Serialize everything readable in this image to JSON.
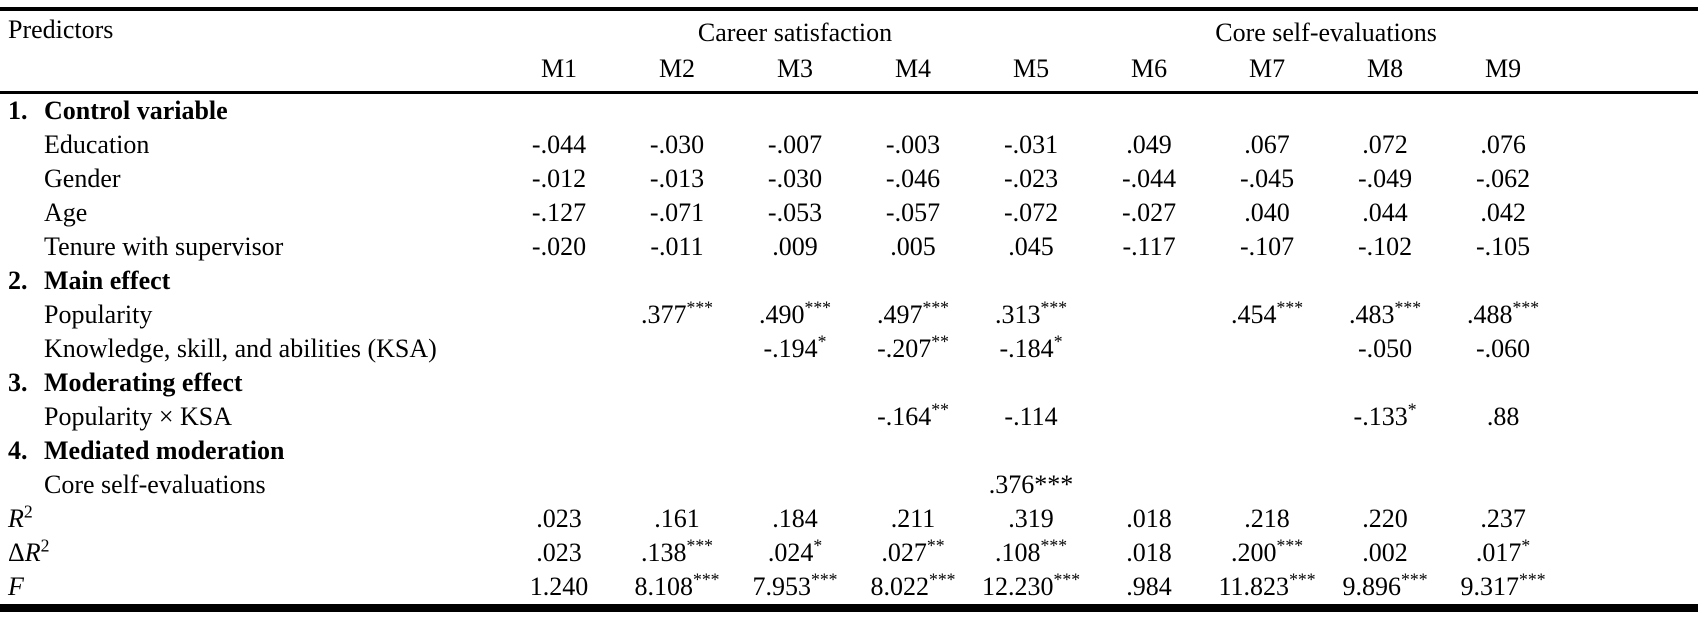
{
  "table": {
    "row_header": "Predictors",
    "groups": [
      {
        "label": "Career satisfaction",
        "span": 5
      },
      {
        "label": "Core self-evaluations",
        "span": 4
      }
    ],
    "model_columns": [
      "M1",
      "M2",
      "M3",
      "M4",
      "M5",
      "M6",
      "M7",
      "M8",
      "M9"
    ],
    "rows": [
      {
        "type": "section",
        "num": "1.",
        "label": "Control variable",
        "values": [
          "",
          "",
          "",
          "",
          "",
          "",
          "",
          "",
          ""
        ]
      },
      {
        "type": "data",
        "label": "Education",
        "values": [
          "-.044",
          "-.030",
          "-.007",
          "-.003",
          "-.031",
          ".049",
          ".067",
          ".072",
          ".076"
        ]
      },
      {
        "type": "data",
        "label": "Gender",
        "values": [
          "-.012",
          "-.013",
          "-.030",
          "-.046",
          "-.023",
          "-.044",
          "-.045",
          "-.049",
          "-.062"
        ]
      },
      {
        "type": "data",
        "label": "Age",
        "values": [
          "-.127",
          "-.071",
          "-.053",
          "-.057",
          "-.072",
          "-.027",
          ".040",
          ".044",
          ".042"
        ]
      },
      {
        "type": "data",
        "label": "Tenure with supervisor",
        "values": [
          "-.020",
          "-.011",
          ".009",
          ".005",
          ".045",
          "-.117",
          "-.107",
          "-.102",
          "-.105"
        ]
      },
      {
        "type": "section",
        "num": "2.",
        "label": "Main effect",
        "values": [
          "",
          "",
          "",
          "",
          "",
          "",
          "",
          "",
          ""
        ]
      },
      {
        "type": "data",
        "label": "Popularity",
        "values": [
          "",
          ".377***",
          ".490***",
          ".497***",
          ".313***",
          "",
          ".454***",
          ".483***",
          ".488***"
        ]
      },
      {
        "type": "data",
        "label": "Knowledge, skill, and abilities (KSA)",
        "values": [
          "",
          "",
          "-.194*",
          "-.207**",
          "-.184*",
          "",
          "",
          "-.050",
          "-.060"
        ]
      },
      {
        "type": "section",
        "num": "3.",
        "label": "Moderating effect",
        "values": [
          "",
          "",
          "",
          "",
          "",
          "",
          "",
          "",
          ""
        ]
      },
      {
        "type": "data",
        "label": "Popularity × KSA",
        "values": [
          "",
          "",
          "",
          "-.164**",
          "-.114",
          "",
          "",
          "-.133*",
          ".88"
        ]
      },
      {
        "type": "section",
        "num": "4.",
        "label": "Mediated moderation",
        "values": [
          "",
          "",
          "",
          "",
          "",
          "",
          "",
          "",
          ""
        ]
      },
      {
        "type": "data",
        "label": "Core self-evaluations",
        "star_style": "inline",
        "values": [
          "",
          "",
          "",
          "",
          ".376***",
          "",
          "",
          "",
          ""
        ]
      },
      {
        "type": "stat",
        "label": "R^2",
        "values": [
          ".023",
          ".161",
          ".184",
          ".211",
          ".319",
          ".018",
          ".218",
          ".220",
          ".237"
        ]
      },
      {
        "type": "stat",
        "label": "ΔR^2",
        "values": [
          ".023",
          ".138***",
          ".024*",
          ".027**",
          ".108***",
          ".018",
          ".200***",
          ".002",
          ".017*"
        ]
      },
      {
        "type": "stat",
        "label": "F",
        "values": [
          "1.240",
          "8.108***",
          "7.953***",
          "8.022***",
          "12.230***",
          ".984",
          "11.823***",
          "9.896***",
          "9.317***"
        ]
      }
    ]
  }
}
